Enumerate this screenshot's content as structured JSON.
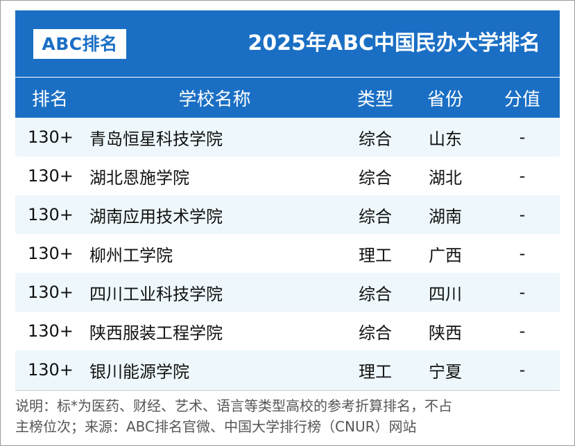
{
  "header": {
    "logo": "ABC排名",
    "title": "2025年ABC中国民办大学排名"
  },
  "columns": {
    "rank": "排名",
    "name": "学校名称",
    "type": "类型",
    "province": "省份",
    "score": "分值"
  },
  "rows": [
    {
      "rank": "130+",
      "name": "青岛恒星科技学院",
      "type": "综合",
      "province": "山东",
      "score": "-"
    },
    {
      "rank": "130+",
      "name": "湖北恩施学院",
      "type": "综合",
      "province": "湖北",
      "score": "-"
    },
    {
      "rank": "130+",
      "name": "湖南应用技术学院",
      "type": "综合",
      "province": "湖南",
      "score": "-"
    },
    {
      "rank": "130+",
      "name": "柳州工学院",
      "type": "理工",
      "province": "广西",
      "score": "-"
    },
    {
      "rank": "130+",
      "name": "四川工业科技学院",
      "type": "综合",
      "province": "四川",
      "score": "-"
    },
    {
      "rank": "130+",
      "name": "陕西服装工程学院",
      "type": "综合",
      "province": "陕西",
      "score": "-"
    },
    {
      "rank": "130+",
      "name": "银川能源学院",
      "type": "理工",
      "province": "宁夏",
      "score": "-"
    }
  ],
  "footnote": {
    "line1": "说明：标*为医药、财经、艺术、语言等类型高校的参考折算排名，不占",
    "line2": "主榜位次；来源：ABC排名官微、中国大学排行榜（CNUR）网站"
  }
}
